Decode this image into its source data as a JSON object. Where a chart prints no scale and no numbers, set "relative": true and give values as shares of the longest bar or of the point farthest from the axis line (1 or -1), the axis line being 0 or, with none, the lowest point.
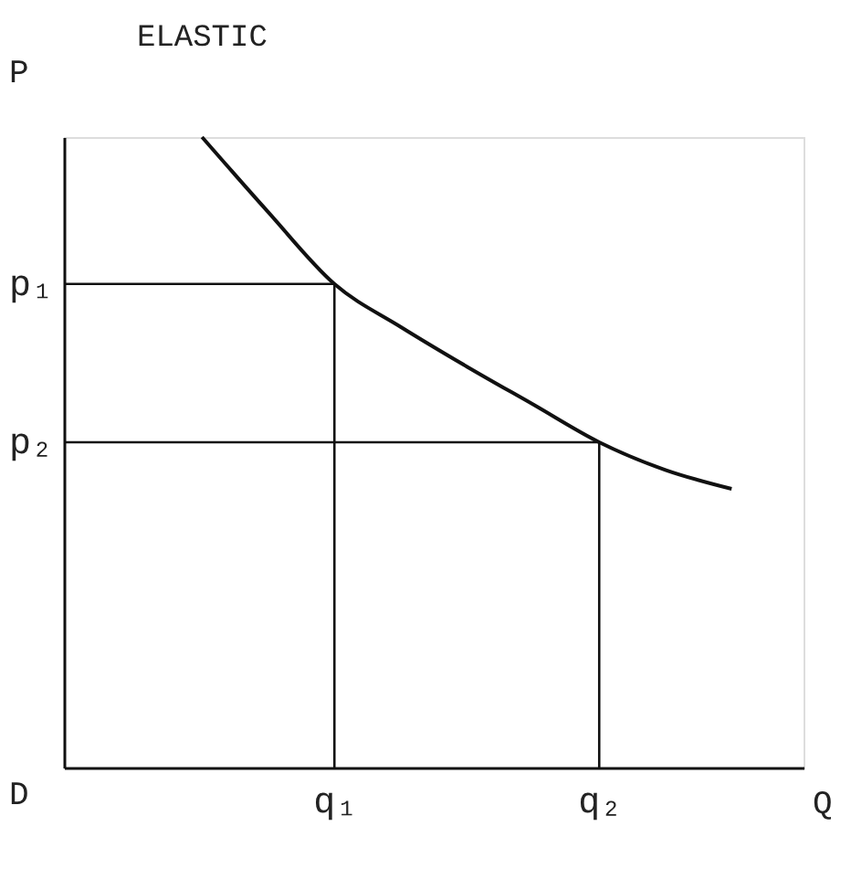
{
  "chart_data": {
    "type": "line",
    "relative": true,
    "title": "ELASTIC",
    "xlabel": "Q",
    "ylabel": "P",
    "annotations": [
      "D"
    ],
    "categories": [
      null,
      null,
      null,
      null,
      "q₁",
      null,
      null,
      null,
      "q₂",
      null,
      null,
      null
    ],
    "series": [
      {
        "color": "#111111",
        "values": [
          null,
          null,
          1,
          0.881,
          0.767,
          0.699,
          0.636,
          0.576,
          0.516,
          0.472,
          0.442,
          null
        ]
      }
    ],
    "ref_lines": [
      {
        "axis": "x",
        "value": "q₁",
        "color": "#111111"
      },
      {
        "axis": "x",
        "value": "q₂",
        "color": "#111111"
      },
      {
        "axis": "y",
        "value": 0.767,
        "label": "p₁",
        "color": "#111111"
      },
      {
        "axis": "y",
        "value": 0.516,
        "label": "p₂",
        "color": "#111111"
      }
    ],
    "grid": false,
    "marker": "none",
    "line_style": "solid"
  }
}
